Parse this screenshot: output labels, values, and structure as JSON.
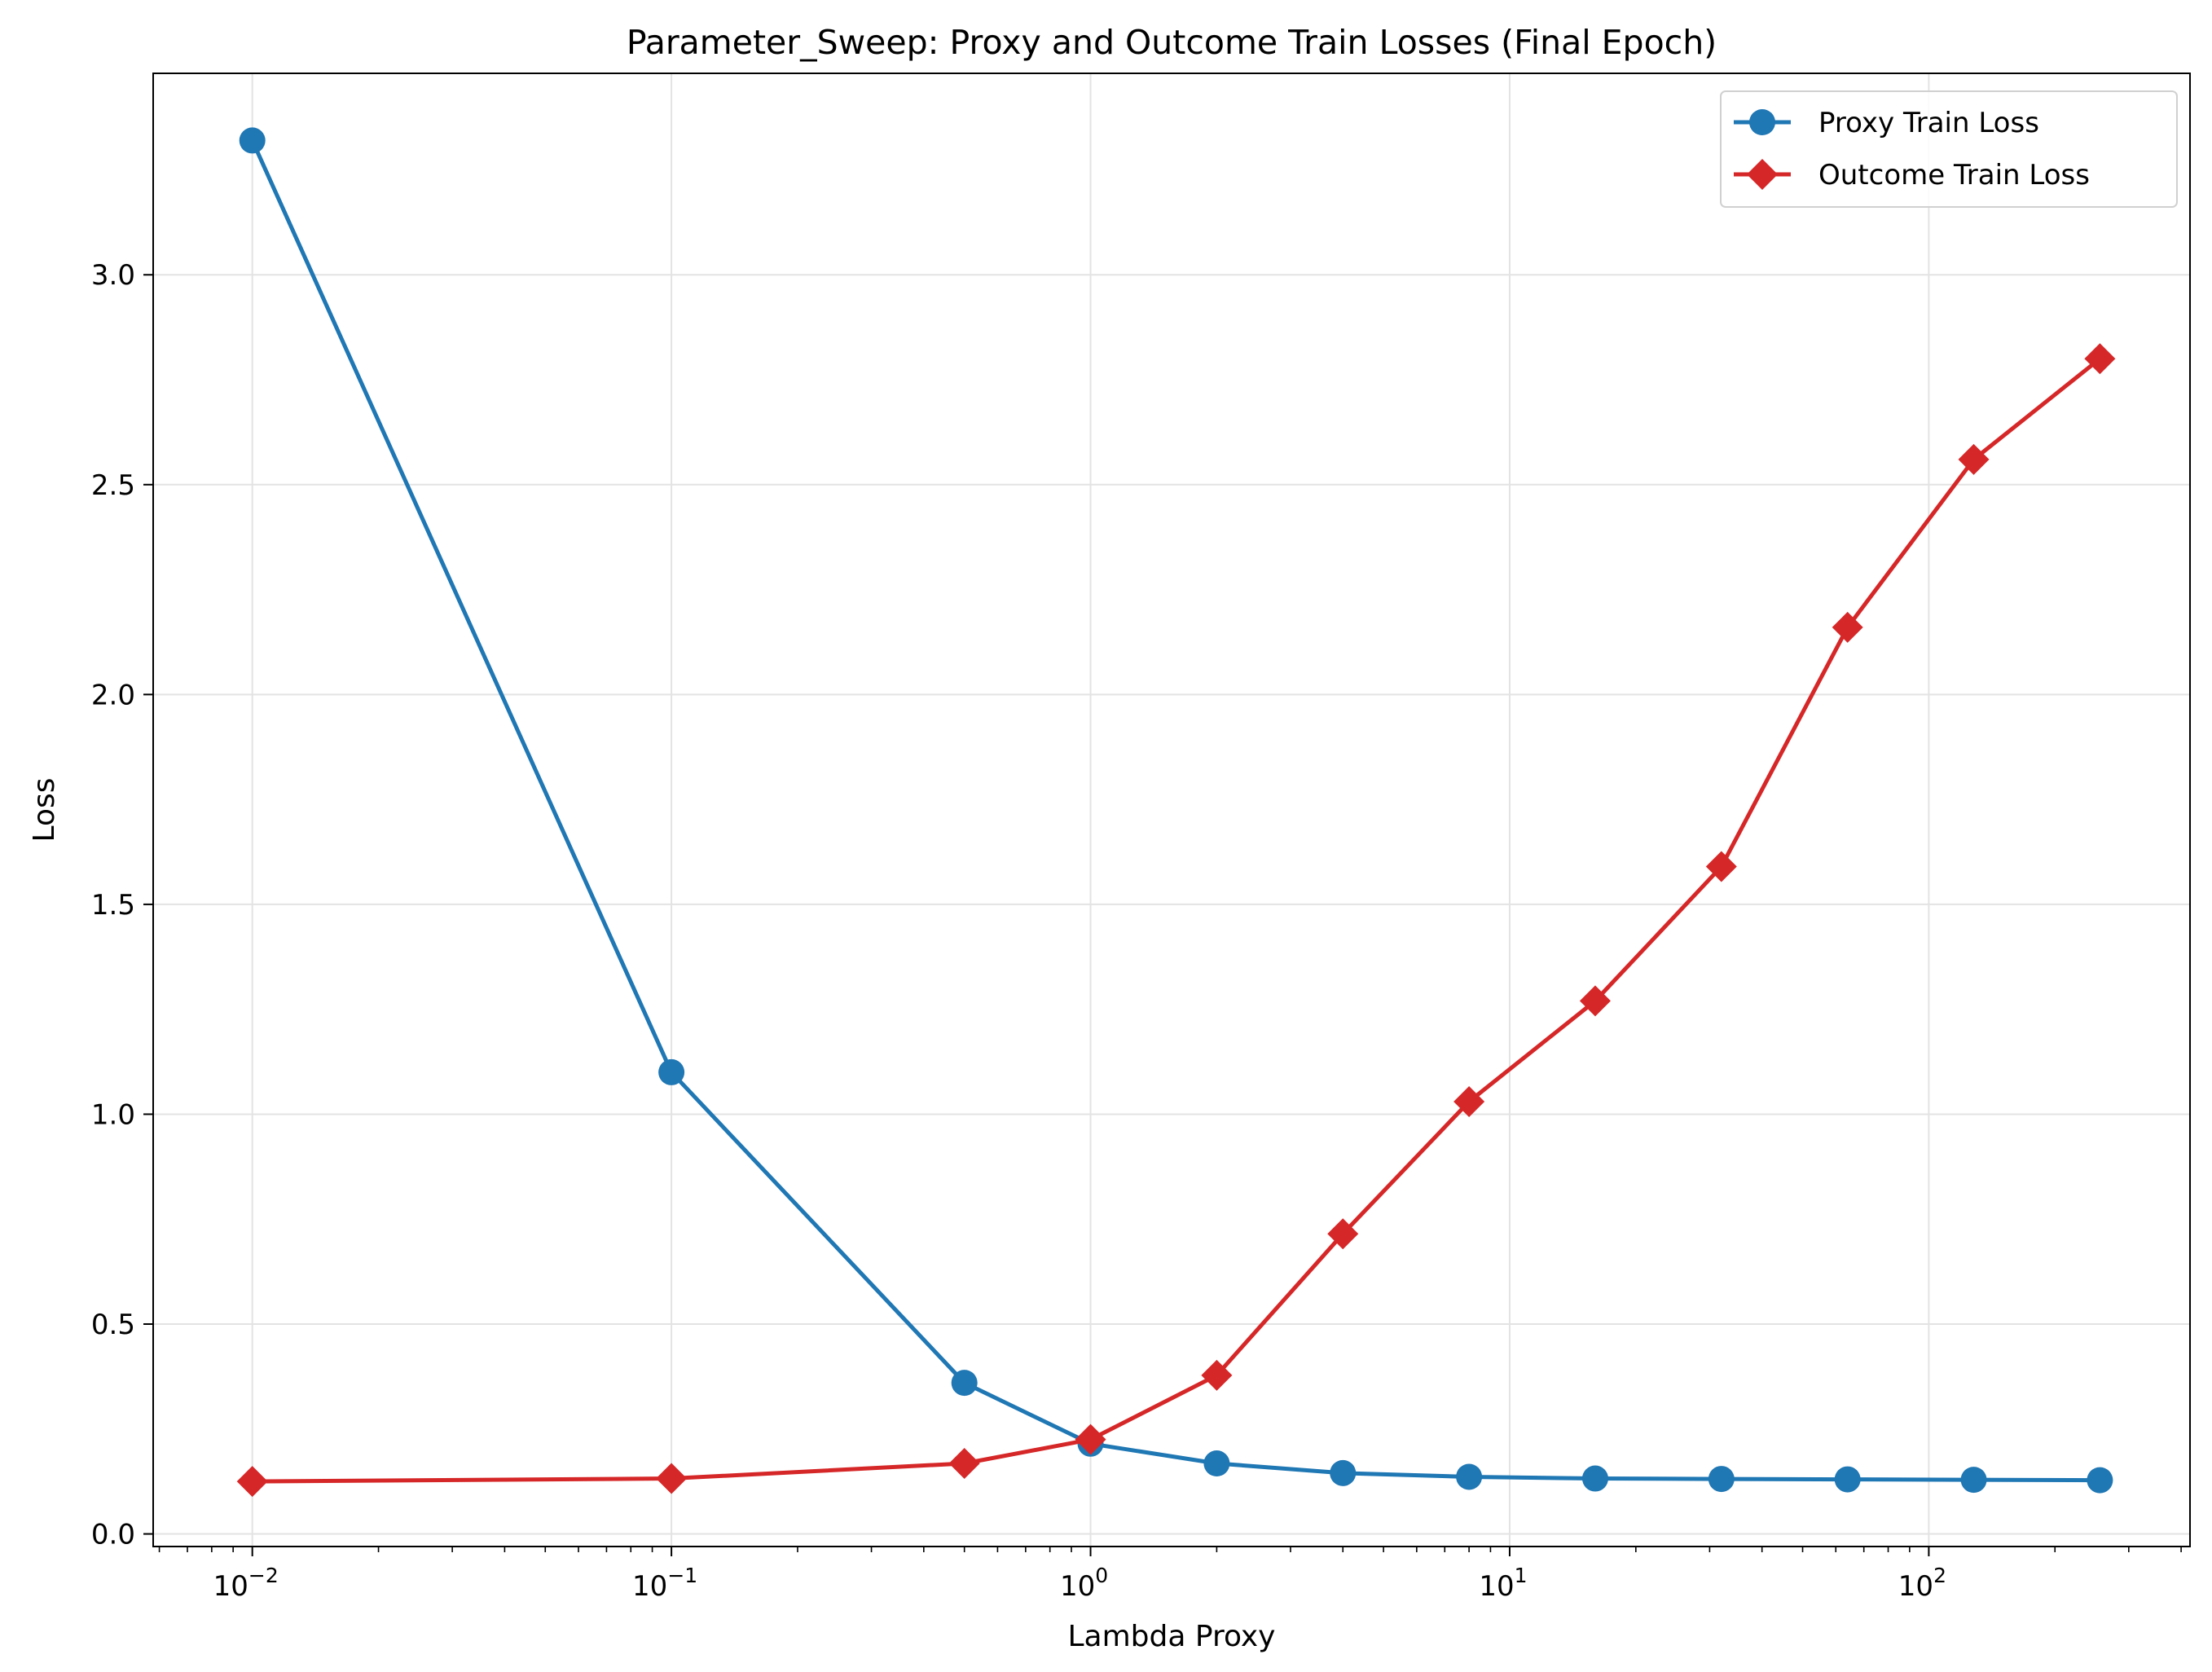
{
  "chart_data": {
    "type": "line",
    "title": "Parameter_Sweep: Proxy and Outcome Train Losses (Final Epoch)",
    "xlabel": "Lambda Proxy",
    "ylabel": "Loss",
    "xscale": "log",
    "xlim": [
      0.0058,
      420
    ],
    "ylim": [
      -0.03,
      3.48
    ],
    "x": [
      0.01,
      0.1,
      0.5,
      1,
      2,
      4,
      8,
      16,
      32,
      64,
      128,
      256
    ],
    "xticks": [
      {
        "value": 0.01,
        "base": "10",
        "exp": "−2"
      },
      {
        "value": 0.1,
        "base": "10",
        "exp": "−1"
      },
      {
        "value": 1,
        "base": "10",
        "exp": "0"
      },
      {
        "value": 10,
        "base": "10",
        "exp": "1"
      },
      {
        "value": 100,
        "base": "10",
        "exp": "2"
      }
    ],
    "yticks": [
      {
        "value": 0.0,
        "label": "0.0"
      },
      {
        "value": 0.5,
        "label": "0.5"
      },
      {
        "value": 1.0,
        "label": "1.0"
      },
      {
        "value": 1.5,
        "label": "1.5"
      },
      {
        "value": 2.0,
        "label": "2.0"
      },
      {
        "value": 2.5,
        "label": "2.5"
      },
      {
        "value": 3.0,
        "label": "3.0"
      }
    ],
    "grid": true,
    "legend_position": "top-right",
    "series": [
      {
        "name": "Proxy Train Loss",
        "color": "#1f77b4",
        "marker": "circle",
        "values": [
          3.32,
          1.1,
          0.36,
          0.215,
          0.168,
          0.145,
          0.136,
          0.132,
          0.131,
          0.13,
          0.129,
          0.128
        ]
      },
      {
        "name": "Outcome Train Loss",
        "color": "#d62728",
        "marker": "diamond",
        "values": [
          0.125,
          0.132,
          0.168,
          0.225,
          0.378,
          0.715,
          1.03,
          1.27,
          1.59,
          2.16,
          2.56,
          2.8
        ]
      }
    ]
  }
}
